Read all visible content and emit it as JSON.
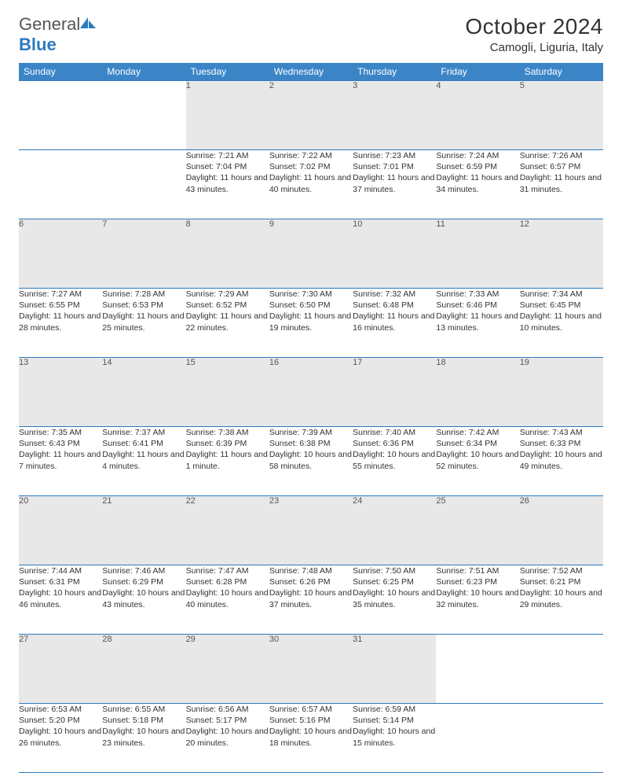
{
  "logo": {
    "general": "General",
    "blue": "Blue"
  },
  "title": "October 2024",
  "location": "Camogli, Liguria, Italy",
  "colors": {
    "header_bg": "#3b85c7",
    "border": "#2d79be",
    "daynum_bg": "#e8e8e8",
    "text": "#333333"
  },
  "weekdays": [
    "Sunday",
    "Monday",
    "Tuesday",
    "Wednesday",
    "Thursday",
    "Friday",
    "Saturday"
  ],
  "weeks": [
    [
      null,
      null,
      {
        "d": "1",
        "sr": "7:21 AM",
        "ss": "7:04 PM",
        "dl": "11 hours and 43 minutes."
      },
      {
        "d": "2",
        "sr": "7:22 AM",
        "ss": "7:02 PM",
        "dl": "11 hours and 40 minutes."
      },
      {
        "d": "3",
        "sr": "7:23 AM",
        "ss": "7:01 PM",
        "dl": "11 hours and 37 minutes."
      },
      {
        "d": "4",
        "sr": "7:24 AM",
        "ss": "6:59 PM",
        "dl": "11 hours and 34 minutes."
      },
      {
        "d": "5",
        "sr": "7:26 AM",
        "ss": "6:57 PM",
        "dl": "11 hours and 31 minutes."
      }
    ],
    [
      {
        "d": "6",
        "sr": "7:27 AM",
        "ss": "6:55 PM",
        "dl": "11 hours and 28 minutes."
      },
      {
        "d": "7",
        "sr": "7:28 AM",
        "ss": "6:53 PM",
        "dl": "11 hours and 25 minutes."
      },
      {
        "d": "8",
        "sr": "7:29 AM",
        "ss": "6:52 PM",
        "dl": "11 hours and 22 minutes."
      },
      {
        "d": "9",
        "sr": "7:30 AM",
        "ss": "6:50 PM",
        "dl": "11 hours and 19 minutes."
      },
      {
        "d": "10",
        "sr": "7:32 AM",
        "ss": "6:48 PM",
        "dl": "11 hours and 16 minutes."
      },
      {
        "d": "11",
        "sr": "7:33 AM",
        "ss": "6:46 PM",
        "dl": "11 hours and 13 minutes."
      },
      {
        "d": "12",
        "sr": "7:34 AM",
        "ss": "6:45 PM",
        "dl": "11 hours and 10 minutes."
      }
    ],
    [
      {
        "d": "13",
        "sr": "7:35 AM",
        "ss": "6:43 PM",
        "dl": "11 hours and 7 minutes."
      },
      {
        "d": "14",
        "sr": "7:37 AM",
        "ss": "6:41 PM",
        "dl": "11 hours and 4 minutes."
      },
      {
        "d": "15",
        "sr": "7:38 AM",
        "ss": "6:39 PM",
        "dl": "11 hours and 1 minute."
      },
      {
        "d": "16",
        "sr": "7:39 AM",
        "ss": "6:38 PM",
        "dl": "10 hours and 58 minutes."
      },
      {
        "d": "17",
        "sr": "7:40 AM",
        "ss": "6:36 PM",
        "dl": "10 hours and 55 minutes."
      },
      {
        "d": "18",
        "sr": "7:42 AM",
        "ss": "6:34 PM",
        "dl": "10 hours and 52 minutes."
      },
      {
        "d": "19",
        "sr": "7:43 AM",
        "ss": "6:33 PM",
        "dl": "10 hours and 49 minutes."
      }
    ],
    [
      {
        "d": "20",
        "sr": "7:44 AM",
        "ss": "6:31 PM",
        "dl": "10 hours and 46 minutes."
      },
      {
        "d": "21",
        "sr": "7:46 AM",
        "ss": "6:29 PM",
        "dl": "10 hours and 43 minutes."
      },
      {
        "d": "22",
        "sr": "7:47 AM",
        "ss": "6:28 PM",
        "dl": "10 hours and 40 minutes."
      },
      {
        "d": "23",
        "sr": "7:48 AM",
        "ss": "6:26 PM",
        "dl": "10 hours and 37 minutes."
      },
      {
        "d": "24",
        "sr": "7:50 AM",
        "ss": "6:25 PM",
        "dl": "10 hours and 35 minutes."
      },
      {
        "d": "25",
        "sr": "7:51 AM",
        "ss": "6:23 PM",
        "dl": "10 hours and 32 minutes."
      },
      {
        "d": "26",
        "sr": "7:52 AM",
        "ss": "6:21 PM",
        "dl": "10 hours and 29 minutes."
      }
    ],
    [
      {
        "d": "27",
        "sr": "6:53 AM",
        "ss": "5:20 PM",
        "dl": "10 hours and 26 minutes."
      },
      {
        "d": "28",
        "sr": "6:55 AM",
        "ss": "5:18 PM",
        "dl": "10 hours and 23 minutes."
      },
      {
        "d": "29",
        "sr": "6:56 AM",
        "ss": "5:17 PM",
        "dl": "10 hours and 20 minutes."
      },
      {
        "d": "30",
        "sr": "6:57 AM",
        "ss": "5:16 PM",
        "dl": "10 hours and 18 minutes."
      },
      {
        "d": "31",
        "sr": "6:59 AM",
        "ss": "5:14 PM",
        "dl": "10 hours and 15 minutes."
      },
      null,
      null
    ]
  ],
  "labels": {
    "sunrise": "Sunrise: ",
    "sunset": "Sunset: ",
    "daylight": "Daylight: "
  }
}
